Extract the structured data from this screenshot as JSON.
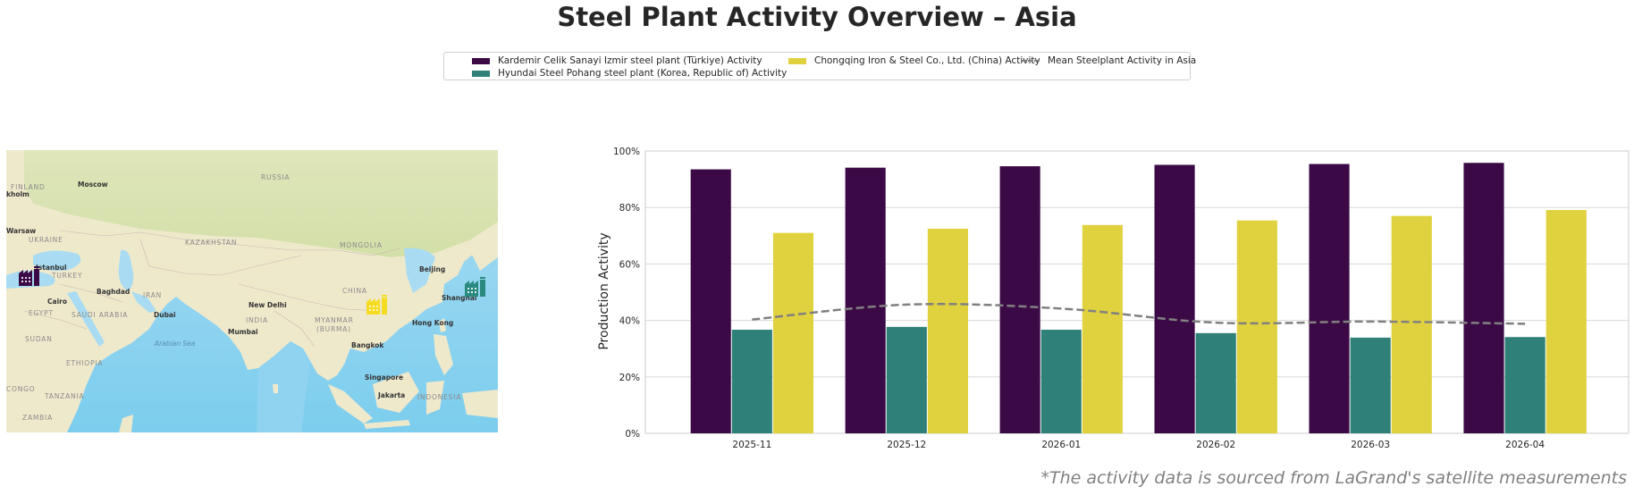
{
  "title": "Steel Plant Activity Overview – Asia",
  "legend": {
    "items": [
      {
        "label": "Kardemir Celik Sanayi Izmir steel plant (Türkiye) Activity",
        "color": "#3b0a46",
        "kind": "bar"
      },
      {
        "label": "Hyundai Steel Pohang steel plant (Korea, Republic of) Activity",
        "color": "#2e8078",
        "kind": "bar"
      },
      {
        "label": "Chongqing Iron & Steel Co., Ltd. (China) Activity",
        "color": "#e0d23f",
        "kind": "bar"
      },
      {
        "label": "Mean Steelplant Activity in Asia",
        "color": "#808080",
        "kind": "dashed-line"
      }
    ]
  },
  "map": {
    "country_labels": [
      "RUSSIA",
      "FINLAND",
      "UKRAINE",
      "KAZAKHSTAN",
      "MONGOLIA",
      "TURKEY",
      "IRAN",
      "EGYPT",
      "SAUDI ARABIA",
      "INDIA",
      "CHINA",
      "MYANMAR",
      "(BURMA)",
      "SUDAN",
      "ETHIOPIA",
      "CONGO",
      "TANZANIA",
      "ZAMBIA",
      "INDONESIA"
    ],
    "city_labels": [
      "Moscow",
      "kholm",
      "Warsaw",
      "Istanbul",
      "Baghdad",
      "Cairo",
      "Dubai",
      "New Delhi",
      "Mumbai",
      "Beijing",
      "Shanghai",
      "Hong Kong",
      "Bangkok",
      "Singapore",
      "Jakarta"
    ],
    "sea_labels": [
      "Arabian Sea"
    ],
    "markers": [
      {
        "plant": "Kardemir Celik Sanayi Izmir steel plant (Türkiye)",
        "icon": "factory-icon",
        "color": "#3b0a46"
      },
      {
        "plant": "Chongqing Iron & Steel Co., Ltd. (China)",
        "icon": "factory-icon",
        "color": "#f5dc23"
      },
      {
        "plant": "Hyundai Steel Pohang steel plant (Korea, Republic of)",
        "icon": "factory-icon",
        "color": "#2a8a80"
      }
    ]
  },
  "footer": "*The activity data is sourced from LaGrand's satellite measurements",
  "chart_data": {
    "type": "bar",
    "title": "",
    "xlabel": "",
    "ylabel": "Production Activity",
    "ylim": [
      0,
      100
    ],
    "yticks": [
      0,
      20,
      40,
      60,
      80,
      100
    ],
    "ytick_labels": [
      "0%",
      "20%",
      "40%",
      "60%",
      "80%",
      "100%"
    ],
    "grid": true,
    "legend_position": "top-center",
    "categories": [
      "2025-11",
      "2025-12",
      "2026-01",
      "2026-02",
      "2026-03",
      "2026-04"
    ],
    "series": [
      {
        "name": "Kardemir Celik Sanayi Izmir steel plant (Türkiye) Activity",
        "type": "bar",
        "color": "#3b0a46",
        "values": [
          93.5,
          94.1,
          94.6,
          95.1,
          95.4,
          95.8
        ]
      },
      {
        "name": "Hyundai Steel Pohang steel plant (Korea, Republic of) Activity",
        "type": "bar",
        "color": "#2e8078",
        "values": [
          36.7,
          37.7,
          36.7,
          35.5,
          33.9,
          34.1
        ]
      },
      {
        "name": "Chongqing Iron & Steel Co., Ltd. (China) Activity",
        "type": "bar",
        "color": "#e0d23f",
        "values": [
          71.0,
          72.5,
          73.8,
          75.4,
          77.0,
          79.1
        ]
      },
      {
        "name": "Mean Steelplant Activity in Asia",
        "type": "line",
        "style": "dashed",
        "color": "#808080",
        "values": [
          40.3,
          45.6,
          44.2,
          39.2,
          39.6,
          38.8
        ]
      }
    ]
  }
}
